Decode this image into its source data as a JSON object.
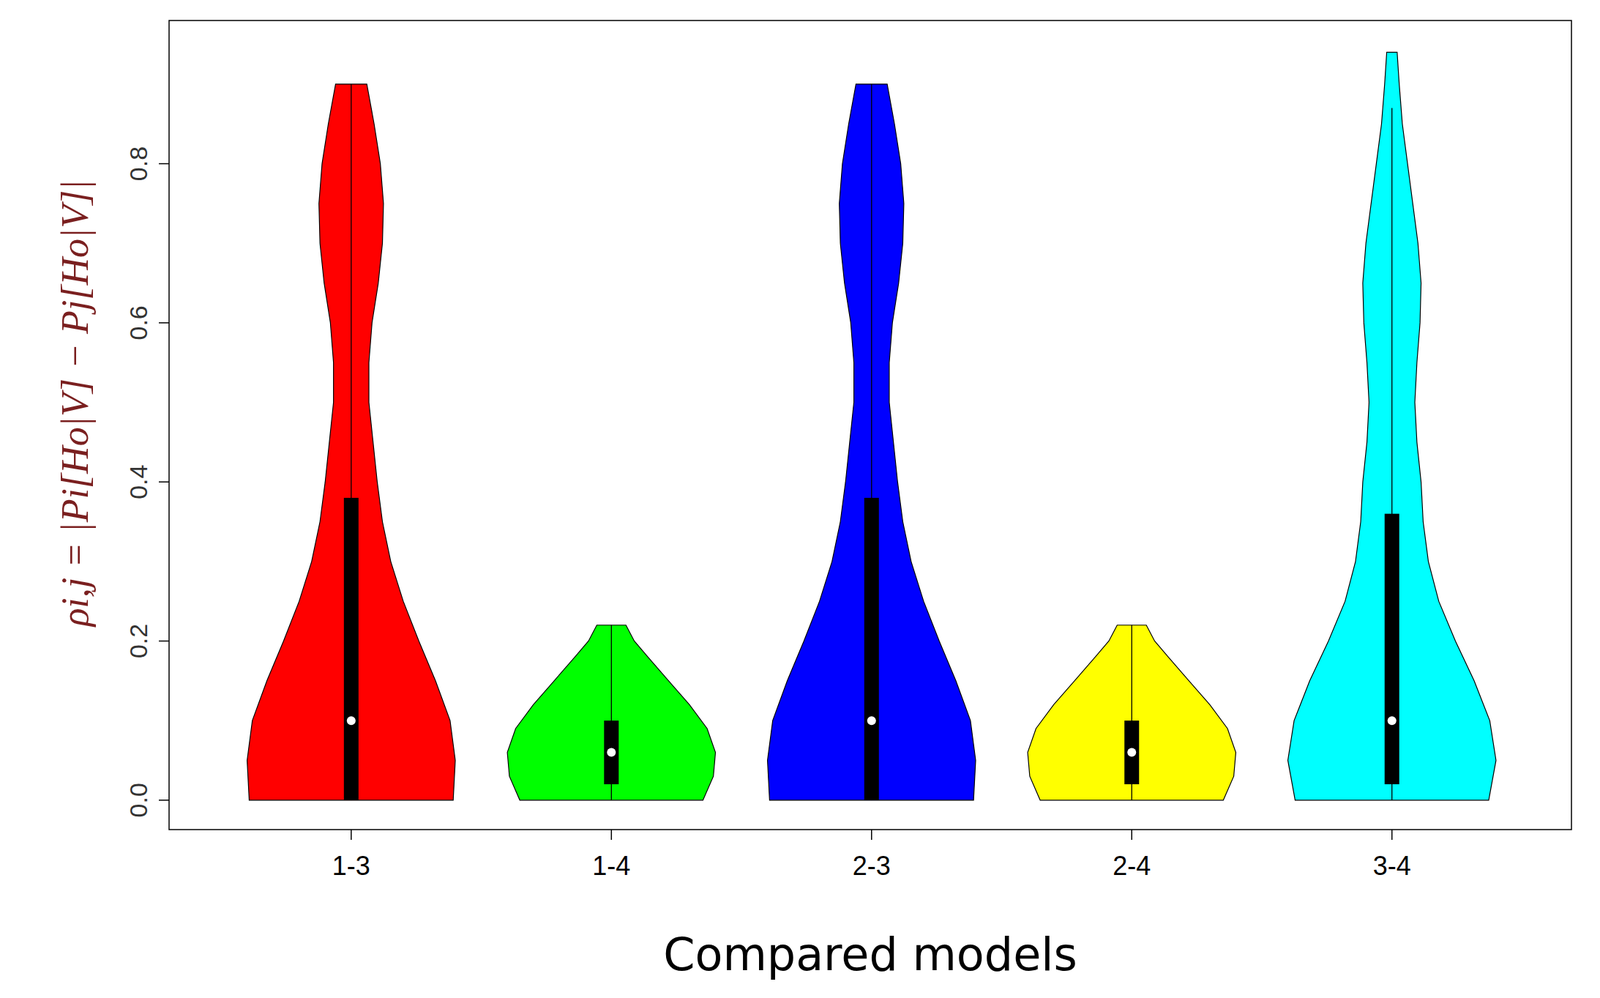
{
  "chart_data": {
    "type": "violin",
    "x_label": "Compared models",
    "y_label": "ρi,j = |Pi[Ho|V] − Pj[Ho|V]|",
    "categories": [
      "1-3",
      "1-4",
      "2-3",
      "2-4",
      "3-4"
    ],
    "colors": [
      "#ff0000",
      "#00ff00",
      "#0000ff",
      "#ffff00",
      "#00ffff"
    ],
    "ylim": [
      -0.037,
      0.98
    ],
    "yticks": [
      {
        "value": 0,
        "label": "0.0"
      },
      0.2,
      0.4,
      0.6,
      0.8
    ],
    "violins": [
      {
        "y": [
          0,
          0.05,
          0.1,
          0.15,
          0.2,
          0.25,
          0.3,
          0.35,
          0.4,
          0.45,
          0.5,
          0.55,
          0.6,
          0.65,
          0.7,
          0.75,
          0.8,
          0.85,
          0.9
        ],
        "density": [
          0.98,
          1.0,
          0.95,
          0.81,
          0.65,
          0.5,
          0.38,
          0.3,
          0.25,
          0.21,
          0.17,
          0.17,
          0.2,
          0.26,
          0.3,
          0.31,
          0.28,
          0.22,
          0.15
        ],
        "whisker_low": 0,
        "q1": 0,
        "median": 0.1,
        "q3": 0.38,
        "whisker_high": 0.9
      },
      {
        "y": [
          0,
          0.03,
          0.06,
          0.09,
          0.12,
          0.15,
          0.18,
          0.2,
          0.22
        ],
        "density": [
          0.88,
          0.98,
          1.0,
          0.92,
          0.75,
          0.55,
          0.35,
          0.22,
          0.14
        ],
        "whisker_low": 0,
        "q1": 0.02,
        "median": 0.06,
        "q3": 0.1,
        "whisker_high": 0.22
      },
      {
        "y": [
          0,
          0.05,
          0.1,
          0.15,
          0.2,
          0.25,
          0.3,
          0.35,
          0.4,
          0.45,
          0.5,
          0.55,
          0.6,
          0.65,
          0.7,
          0.75,
          0.8,
          0.85,
          0.9
        ],
        "density": [
          0.98,
          1.0,
          0.95,
          0.81,
          0.65,
          0.5,
          0.38,
          0.3,
          0.25,
          0.21,
          0.17,
          0.17,
          0.2,
          0.26,
          0.3,
          0.31,
          0.28,
          0.22,
          0.15
        ],
        "whisker_low": 0,
        "q1": 0,
        "median": 0.1,
        "q3": 0.38,
        "whisker_high": 0.9
      },
      {
        "y": [
          0,
          0.03,
          0.06,
          0.09,
          0.12,
          0.15,
          0.18,
          0.2,
          0.22
        ],
        "density": [
          0.88,
          0.98,
          1.0,
          0.92,
          0.75,
          0.55,
          0.35,
          0.22,
          0.14
        ],
        "whisker_low": 0,
        "q1": 0.02,
        "median": 0.06,
        "q3": 0.1,
        "whisker_high": 0.22
      },
      {
        "y": [
          0,
          0.05,
          0.1,
          0.15,
          0.2,
          0.25,
          0.3,
          0.35,
          0.4,
          0.45,
          0.5,
          0.55,
          0.6,
          0.65,
          0.7,
          0.75,
          0.8,
          0.85,
          0.9,
          0.94
        ],
        "density": [
          0.93,
          1.0,
          0.94,
          0.79,
          0.61,
          0.45,
          0.35,
          0.3,
          0.28,
          0.24,
          0.22,
          0.24,
          0.27,
          0.28,
          0.25,
          0.2,
          0.15,
          0.1,
          0.07,
          0.05
        ],
        "whisker_low": 0,
        "q1": 0.02,
        "median": 0.1,
        "q3": 0.36,
        "whisker_high": 0.87
      }
    ]
  }
}
